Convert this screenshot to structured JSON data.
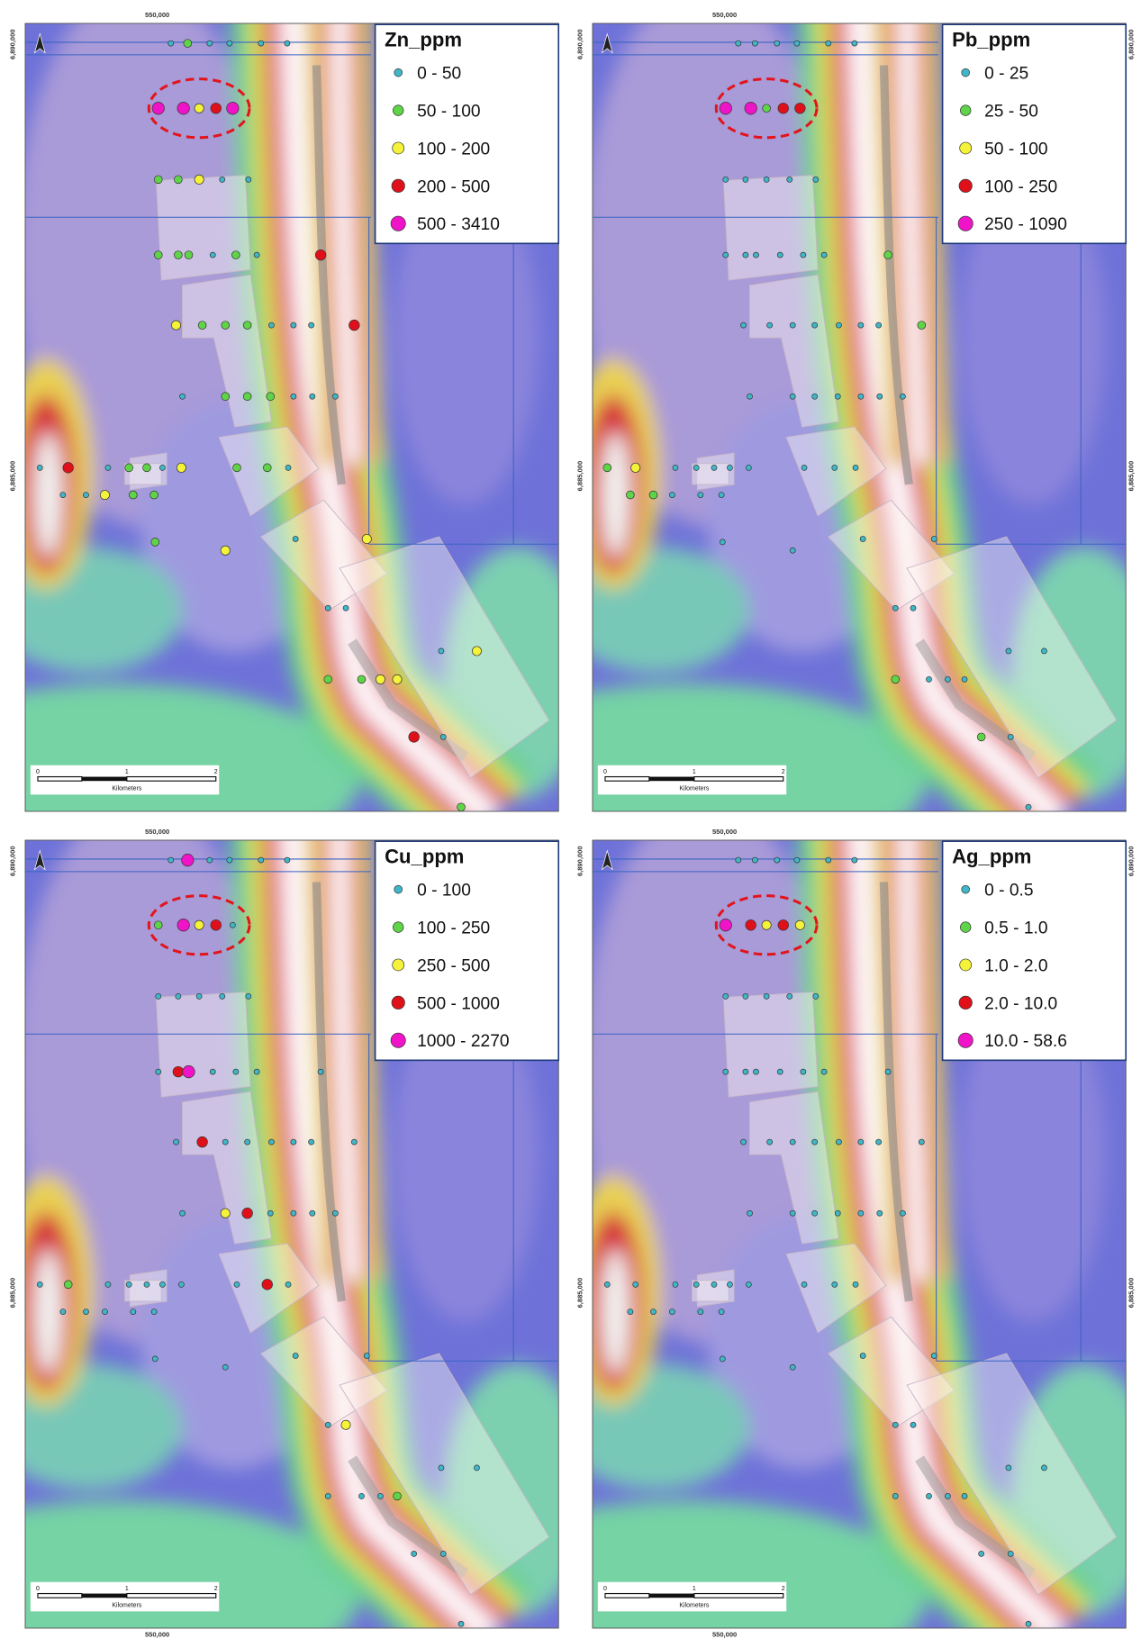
{
  "panels": [
    {
      "legend": {
        "title": "Zn_ppm",
        "classes": [
          "0 - 50",
          "50 - 100",
          "100 - 200",
          "200 - 500",
          "500 - 3410"
        ]
      }
    },
    {
      "legend": {
        "title": "Pb_ppm",
        "classes": [
          "0 - 25",
          "25 - 50",
          "50 - 100",
          "100 - 250",
          "250 - 1090"
        ]
      }
    },
    {
      "legend": {
        "title": "Cu_ppm",
        "classes": [
          "0 - 100",
          "100 - 250",
          "250 - 500",
          "500 - 1000",
          "1000 - 2270"
        ]
      }
    },
    {
      "legend": {
        "title": "Ag_ppm",
        "classes": [
          "0 - 0.5",
          "0.5 - 1.0",
          "1.0 - 2.0",
          "2.0 - 10.0",
          "10.0 - 58.6"
        ]
      }
    }
  ],
  "grid_labels": {
    "easting": "550,000",
    "northing_top": "6,890,000",
    "northing_mid": "6,885,000"
  },
  "scale_bar": {
    "ticks": [
      "0",
      "1",
      "2"
    ],
    "unit": "Kilometers"
  }
}
